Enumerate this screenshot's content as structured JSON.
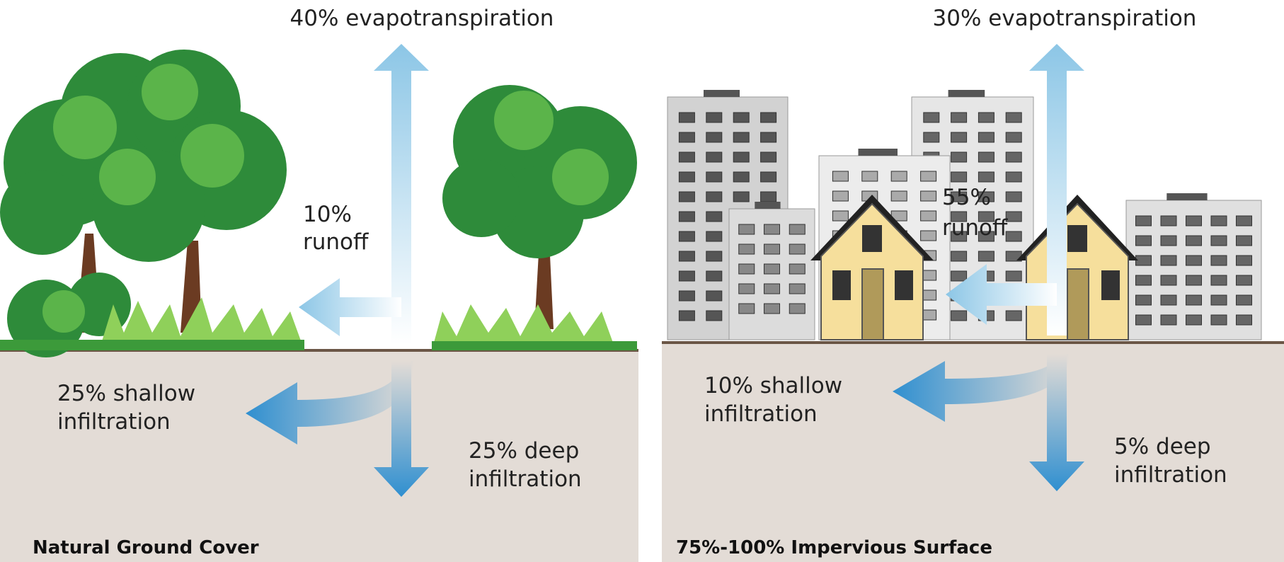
{
  "panels": [
    {
      "title": "Natural Ground Cover",
      "evapotranspiration": "40% evapotranspiration",
      "runoff": [
        "10%",
        "runoff"
      ],
      "shallow": [
        "25% shallow",
        "infiltration"
      ],
      "deep": [
        "25% deep",
        "infiltration"
      ]
    },
    {
      "title": "75%-100% Impervious Surface",
      "evapotranspiration": "30% evapotranspiration",
      "runoff": [
        "55%",
        "runoff"
      ],
      "shallow": [
        "10% shallow",
        "infiltration"
      ],
      "deep": [
        "5% deep",
        "infiltration"
      ]
    }
  ]
}
